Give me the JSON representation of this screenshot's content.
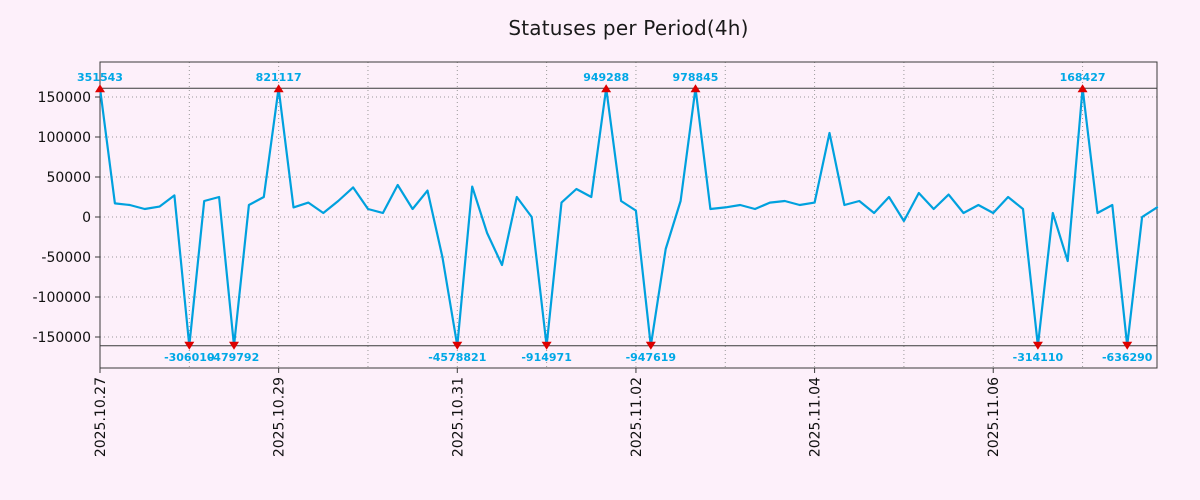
{
  "title": "Statuses per Period(4h)",
  "colors": {
    "background": "#fdf0fa",
    "line": "#00a1de",
    "value_label": "#00a8e6",
    "marker": "#dd0000",
    "grid": "#999999",
    "frame": "#3a3a3a",
    "text": "#111111"
  },
  "chart_data": {
    "type": "line",
    "title": "Statuses per Period(4h)",
    "period": "4h",
    "legend_position": "none",
    "grid": "dotted",
    "y_ticks": [
      {
        "value": 150000,
        "label": "150000"
      },
      {
        "value": 100000,
        "label": "100000"
      },
      {
        "value": 50000,
        "label": "50000"
      },
      {
        "value": 0,
        "label": "0"
      },
      {
        "value": -50000,
        "label": "-50000"
      },
      {
        "value": -100000,
        "label": "-100000"
      },
      {
        "value": -150000,
        "label": "-150000"
      }
    ],
    "y_clip_limit": 161000,
    "points_per_day": 6,
    "x_tick_labels": [
      "2025.10.27",
      "2025.10.29",
      "2025.10.31",
      "2025.11.02",
      "2025.11.04",
      "2025.11.06"
    ],
    "x_tick_indices": [
      0,
      12,
      24,
      36,
      48,
      60
    ],
    "x_day_grid_indices": [
      0,
      6,
      12,
      18,
      24,
      30,
      36,
      42,
      48,
      54,
      60,
      66
    ],
    "values": [
      351543,
      17000,
      15000,
      10000,
      13000,
      27000,
      -306010,
      20000,
      25000,
      -479792,
      15000,
      25000,
      821117,
      12000,
      18000,
      5000,
      20000,
      37000,
      10000,
      5000,
      40000,
      10000,
      33000,
      -50000,
      -4578821,
      38000,
      -20000,
      -60000,
      25000,
      0,
      -914971,
      18000,
      35000,
      25000,
      949288,
      20000,
      8000,
      -947619,
      -40000,
      20000,
      978845,
      10000,
      12000,
      15000,
      10000,
      18000,
      20000,
      15000,
      18000,
      105000,
      15000,
      20000,
      5000,
      25000,
      -5000,
      30000,
      10000,
      28000,
      5000,
      15000,
      5000,
      25000,
      10000,
      -314110,
      5000,
      -55000,
      168427,
      5000,
      15000,
      -636290,
      0,
      12000
    ],
    "peak_annotations": [
      {
        "index": 0,
        "value": 351543,
        "label": "351543"
      },
      {
        "index": 12,
        "value": 821117,
        "label": "821117"
      },
      {
        "index": 34,
        "value": 949288,
        "label": "949288"
      },
      {
        "index": 40,
        "value": 978845,
        "label": "978845"
      },
      {
        "index": 66,
        "value": 168427,
        "label": "168427"
      }
    ],
    "trough_annotations": [
      {
        "index": 6,
        "value": -306010,
        "label": "-306010"
      },
      {
        "index": 9,
        "value": -479792,
        "label": "-479792"
      },
      {
        "index": 24,
        "value": -4578821,
        "label": "-4578821"
      },
      {
        "index": 30,
        "value": -914971,
        "label": "-914971"
      },
      {
        "index": 37,
        "value": -947619,
        "label": "-947619"
      },
      {
        "index": 63,
        "value": -314110,
        "label": "-314110"
      },
      {
        "index": 69,
        "value": -636290,
        "label": "-636290"
      }
    ]
  }
}
